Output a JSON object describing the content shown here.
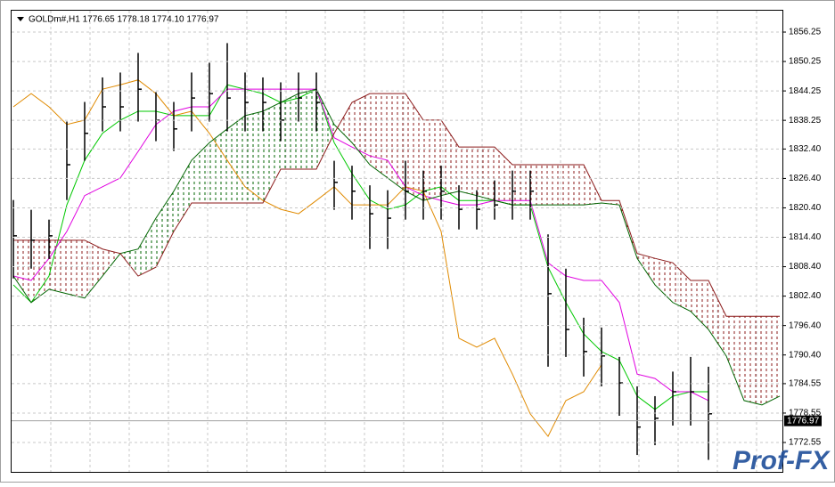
{
  "chart_data": {
    "type": "ohlc",
    "title": "GOLDm#,H1  1776.65 1778.18 1774.10 1776.97",
    "watermark": "Prof-FX",
    "ylim": [
      1766.56,
      1862.79
    ],
    "yticks": [
      1856.25,
      1850.25,
      1844.25,
      1838.25,
      {
        "value": 1832.4,
        "label": "1832.40"
      },
      {
        "value": 1826.4,
        "label": "1826.40"
      },
      {
        "value": 1820.4,
        "label": "1820.40"
      },
      {
        "value": 1814.4,
        "label": "1814.40"
      },
      {
        "value": 1808.4,
        "label": "1808.40"
      },
      {
        "value": 1802.4,
        "label": "1802.40"
      },
      {
        "value": 1796.4,
        "label": "1796.40"
      },
      {
        "value": 1790.4,
        "label": "1790.40"
      },
      1784.55,
      1778.55,
      1772.55
    ],
    "grid": true,
    "current_price": {
      "value": 1776.97,
      "label": "1776.97"
    },
    "bar_color": "#000000",
    "high": [
      1822,
      1820,
      1818,
      1838,
      1842,
      1847,
      1848,
      1852,
      1844,
      1842,
      1848,
      1850,
      1854,
      1848,
      1847,
      1846,
      1848,
      1848,
      1830,
      1829,
      1825,
      1824,
      1830,
      1828,
      1829,
      1825,
      1824,
      1826,
      1828,
      1828,
      1815,
      1808,
      1798,
      1796,
      1790,
      1784,
      1782,
      1787,
      1790,
      1788,
      null,
      null,
      null,
      null
    ],
    "low": [
      1806,
      1808,
      1810,
      1822,
      1830,
      1836,
      1836,
      1838,
      1834,
      1832,
      1836,
      1838,
      1836,
      1836,
      1836,
      1834,
      1838,
      1836,
      1820,
      1818,
      1812,
      1812,
      1818,
      1818,
      1818,
      1816,
      1816,
      1818,
      1818,
      1818,
      1788,
      1790,
      1786,
      1784,
      1778,
      1770,
      1772,
      1776,
      1776,
      1769,
      null,
      null,
      null,
      null
    ],
    "close": [
      1814.7,
      1813.8,
      1814.7,
      1829.2,
      1835.6,
      1841.0,
      1841.0,
      1844.6,
      1838.3,
      1836.5,
      1842.8,
      1843.7,
      1842.8,
      1841.9,
      1841.9,
      1838.3,
      1842.8,
      1841.9,
      1825.6,
      1823.8,
      1819.2,
      1818.3,
      1823.8,
      1823.8,
      1823.8,
      1820.1,
      1820.1,
      1821.0,
      1823.8,
      1823.8,
      1802.9,
      1795.6,
      1791.1,
      1790.2,
      1784.7,
      1775.7,
      1777.5,
      1782.9,
      1782.9,
      1778.4,
      null,
      null,
      null,
      null
    ],
    "series": [
      {
        "color": "#00c800",
        "values": [
          1804.7,
          1801.1,
          1806.5,
          1821.0,
          1830.1,
          1835.6,
          1838.3,
          1840.1,
          1840.1,
          1839.2,
          1839.2,
          1839.2,
          1845.5,
          1844.6,
          1843.7,
          1841.9,
          1842.8,
          1844.6,
          1833.7,
          1827.4,
          1822.0,
          1820.1,
          1821.0,
          1823.8,
          1824.7,
          1821.9,
          1821.9,
          1821.9,
          1821.0,
          1821.0,
          1808.3,
          1801.1,
          1794.7,
          1791.1,
          1789.3,
          1782.0,
          1779.3,
          1782.0,
          1782.9,
          1782.9,
          null,
          null,
          null,
          null
        ]
      },
      {
        "color": "#e000e0",
        "values": [
          1806.5,
          1805.6,
          1810.1,
          1815.6,
          1822.9,
          1824.7,
          1826.5,
          1831.9,
          1837.4,
          1840.1,
          1841.0,
          1841.0,
          1844.6,
          1844.6,
          1844.6,
          1844.6,
          1844.6,
          1844.6,
          1834.7,
          1832.8,
          1831.0,
          1830.1,
          1824.7,
          1822.9,
          1821.9,
          1821.0,
          1821.0,
          1821.9,
          1821.9,
          1821.9,
          1809.2,
          1806.5,
          1805.6,
          1805.6,
          1801.1,
          1786.5,
          1785.6,
          1782.9,
          1782.9,
          1781.1,
          null,
          null,
          null,
          null
        ]
      },
      {
        "color": "#e08a00",
        "values": [
          1841.0,
          1843.7,
          1841.0,
          1837.4,
          1838.3,
          1844.6,
          1845.5,
          1846.5,
          1843.7,
          1839.2,
          1840.1,
          1835.6,
          1830.1,
          1824.7,
          1821.9,
          1820.1,
          1819.2,
          1821.9,
          1824.7,
          1821.0,
          1821.0,
          1821.0,
          1824.7,
          1823.8,
          1815.6,
          1793.8,
          1792.0,
          1793.8,
          1786.5,
          1778.4,
          1773.8,
          1781.1,
          1782.9,
          1788.4,
          null,
          null,
          null,
          null,
          null,
          null,
          null,
          null,
          null,
          null
        ]
      },
      {
        "color": "#006400",
        "values": [
          1806.5,
          1801.1,
          1803.8,
          1802.9,
          1802.0,
          1806.5,
          1811.1,
          1812.0,
          1818.3,
          1823.8,
          1830.1,
          1833.7,
          1836.5,
          1839.2,
          1840.1,
          1841.9,
          1843.7,
          1844.6,
          1837.4,
          1833.7,
          1829.2,
          1826.5,
          1823.8,
          1821.9,
          1822.9,
          1823.8,
          1822.9,
          1821.9,
          1821.0,
          1821.0,
          1821.0,
          1821.0,
          1821.0,
          1821.4,
          1821.0,
          1810.1,
          1804.7,
          1801.1,
          1799.3,
          1795.6,
          1790.2,
          1781.1,
          1780.2,
          1782.0
        ]
      },
      {
        "color": "#8b1a1a",
        "values": [
          1813.8,
          1813.8,
          1813.8,
          1813.8,
          1813.8,
          1812.0,
          1811.1,
          1806.5,
          1808.3,
          1815.6,
          1821.4,
          1821.4,
          1821.4,
          1821.4,
          1821.4,
          1828.3,
          1828.3,
          1828.3,
          1835.6,
          1841.9,
          1843.7,
          1843.7,
          1843.7,
          1838.3,
          1838.3,
          1832.8,
          1832.8,
          1832.8,
          1829.2,
          1829.2,
          1829.2,
          1829.2,
          1829.2,
          1821.9,
          1821.9,
          1811.1,
          1810.1,
          1809.2,
          1805.6,
          1805.6,
          1798.3,
          1798.3,
          1798.3,
          1798.3
        ]
      }
    ]
  }
}
